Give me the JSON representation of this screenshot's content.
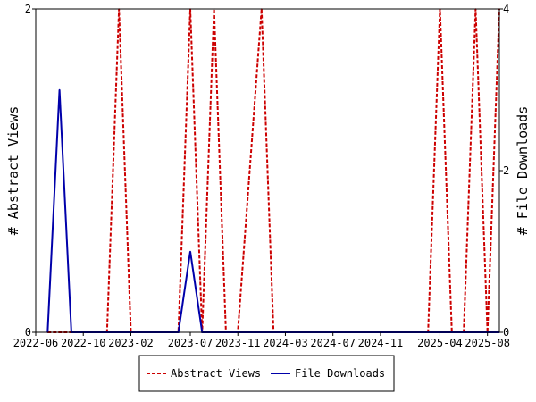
{
  "chart_data": {
    "type": "line",
    "x": [
      "2022-07",
      "2022-08",
      "2022-09",
      "2022-10",
      "2022-11",
      "2022-12",
      "2023-01",
      "2023-02",
      "2023-03",
      "2023-04",
      "2023-05",
      "2023-06",
      "2023-07",
      "2023-08",
      "2023-09",
      "2023-10",
      "2023-11",
      "2023-12",
      "2024-01",
      "2024-02",
      "2024-03",
      "2024-04",
      "2024-05",
      "2024-06",
      "2024-07",
      "2024-08",
      "2024-09",
      "2024-10",
      "2024-11",
      "2024-12",
      "2025-01",
      "2025-02",
      "2025-03",
      "2025-04",
      "2025-05",
      "2025-06",
      "2025-07",
      "2025-08",
      "2025-09"
    ],
    "x_ticks": [
      "2022-06",
      "2022-10",
      "2023-02",
      "2023-07",
      "2023-11",
      "2024-03",
      "2024-07",
      "2024-11",
      "2025-04",
      "2025-08"
    ],
    "series": [
      {
        "name": "Abstract Views",
        "axis": "left",
        "color": "#cc0000",
        "dash": true,
        "values": [
          0,
          0,
          0,
          0,
          0,
          0,
          2,
          0,
          0,
          0,
          0,
          0,
          2,
          0,
          2,
          0,
          0,
          1,
          2,
          0,
          0,
          0,
          0,
          0,
          0,
          0,
          0,
          0,
          0,
          0,
          0,
          0,
          0,
          2,
          0,
          0,
          2,
          0,
          2
        ]
      },
      {
        "name": "File Downloads",
        "axis": "right",
        "color": "#0000aa",
        "dash": false,
        "values": [
          0,
          3,
          0,
          0,
          0,
          0,
          0,
          0,
          0,
          0,
          0,
          0,
          1,
          0,
          0,
          0,
          0,
          0,
          0,
          0,
          0,
          0,
          0,
          0,
          0,
          0,
          0,
          0,
          0,
          0,
          0,
          0,
          0,
          0,
          0,
          0,
          0,
          0,
          0
        ]
      }
    ],
    "ylabel": "# Abstract Views",
    "y2label": "# File Downloads",
    "ylim": [
      0,
      2
    ],
    "y2lim": [
      0,
      4
    ],
    "yticks": [
      "0",
      "2"
    ],
    "y2ticks": [
      "0",
      "2",
      "4"
    ],
    "grid": false,
    "legend_position": "bottom"
  }
}
